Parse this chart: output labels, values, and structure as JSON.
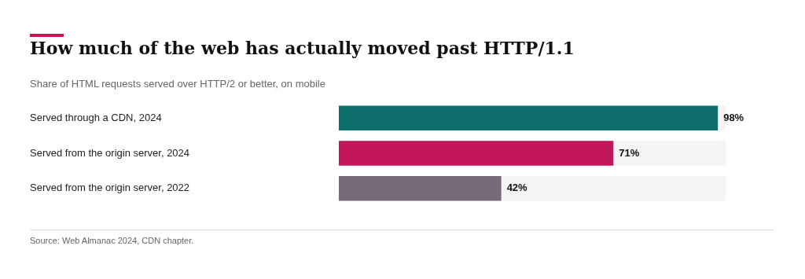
{
  "chart_data": {
    "type": "bar",
    "orientation": "horizontal",
    "title": "How much of the web has actually moved past HTTP/1.1",
    "subtitle": "Share of HTML requests served over HTTP/2 or better, on mobile",
    "categories": [
      "Served through a CDN, 2024",
      "Served from the origin server, 2024",
      "Served from the origin server, 2022"
    ],
    "values": [
      98,
      71,
      42
    ],
    "colors": [
      "#0e6e6b",
      "#c2185b",
      "#756c78"
    ],
    "value_labels": [
      "98%",
      "71%",
      "42%"
    ],
    "xlim": [
      0,
      100
    ],
    "legend": false,
    "tick_labels": "y",
    "annotations": [
      "Source: Web Almanac 2024, CDN chapter."
    ]
  }
}
